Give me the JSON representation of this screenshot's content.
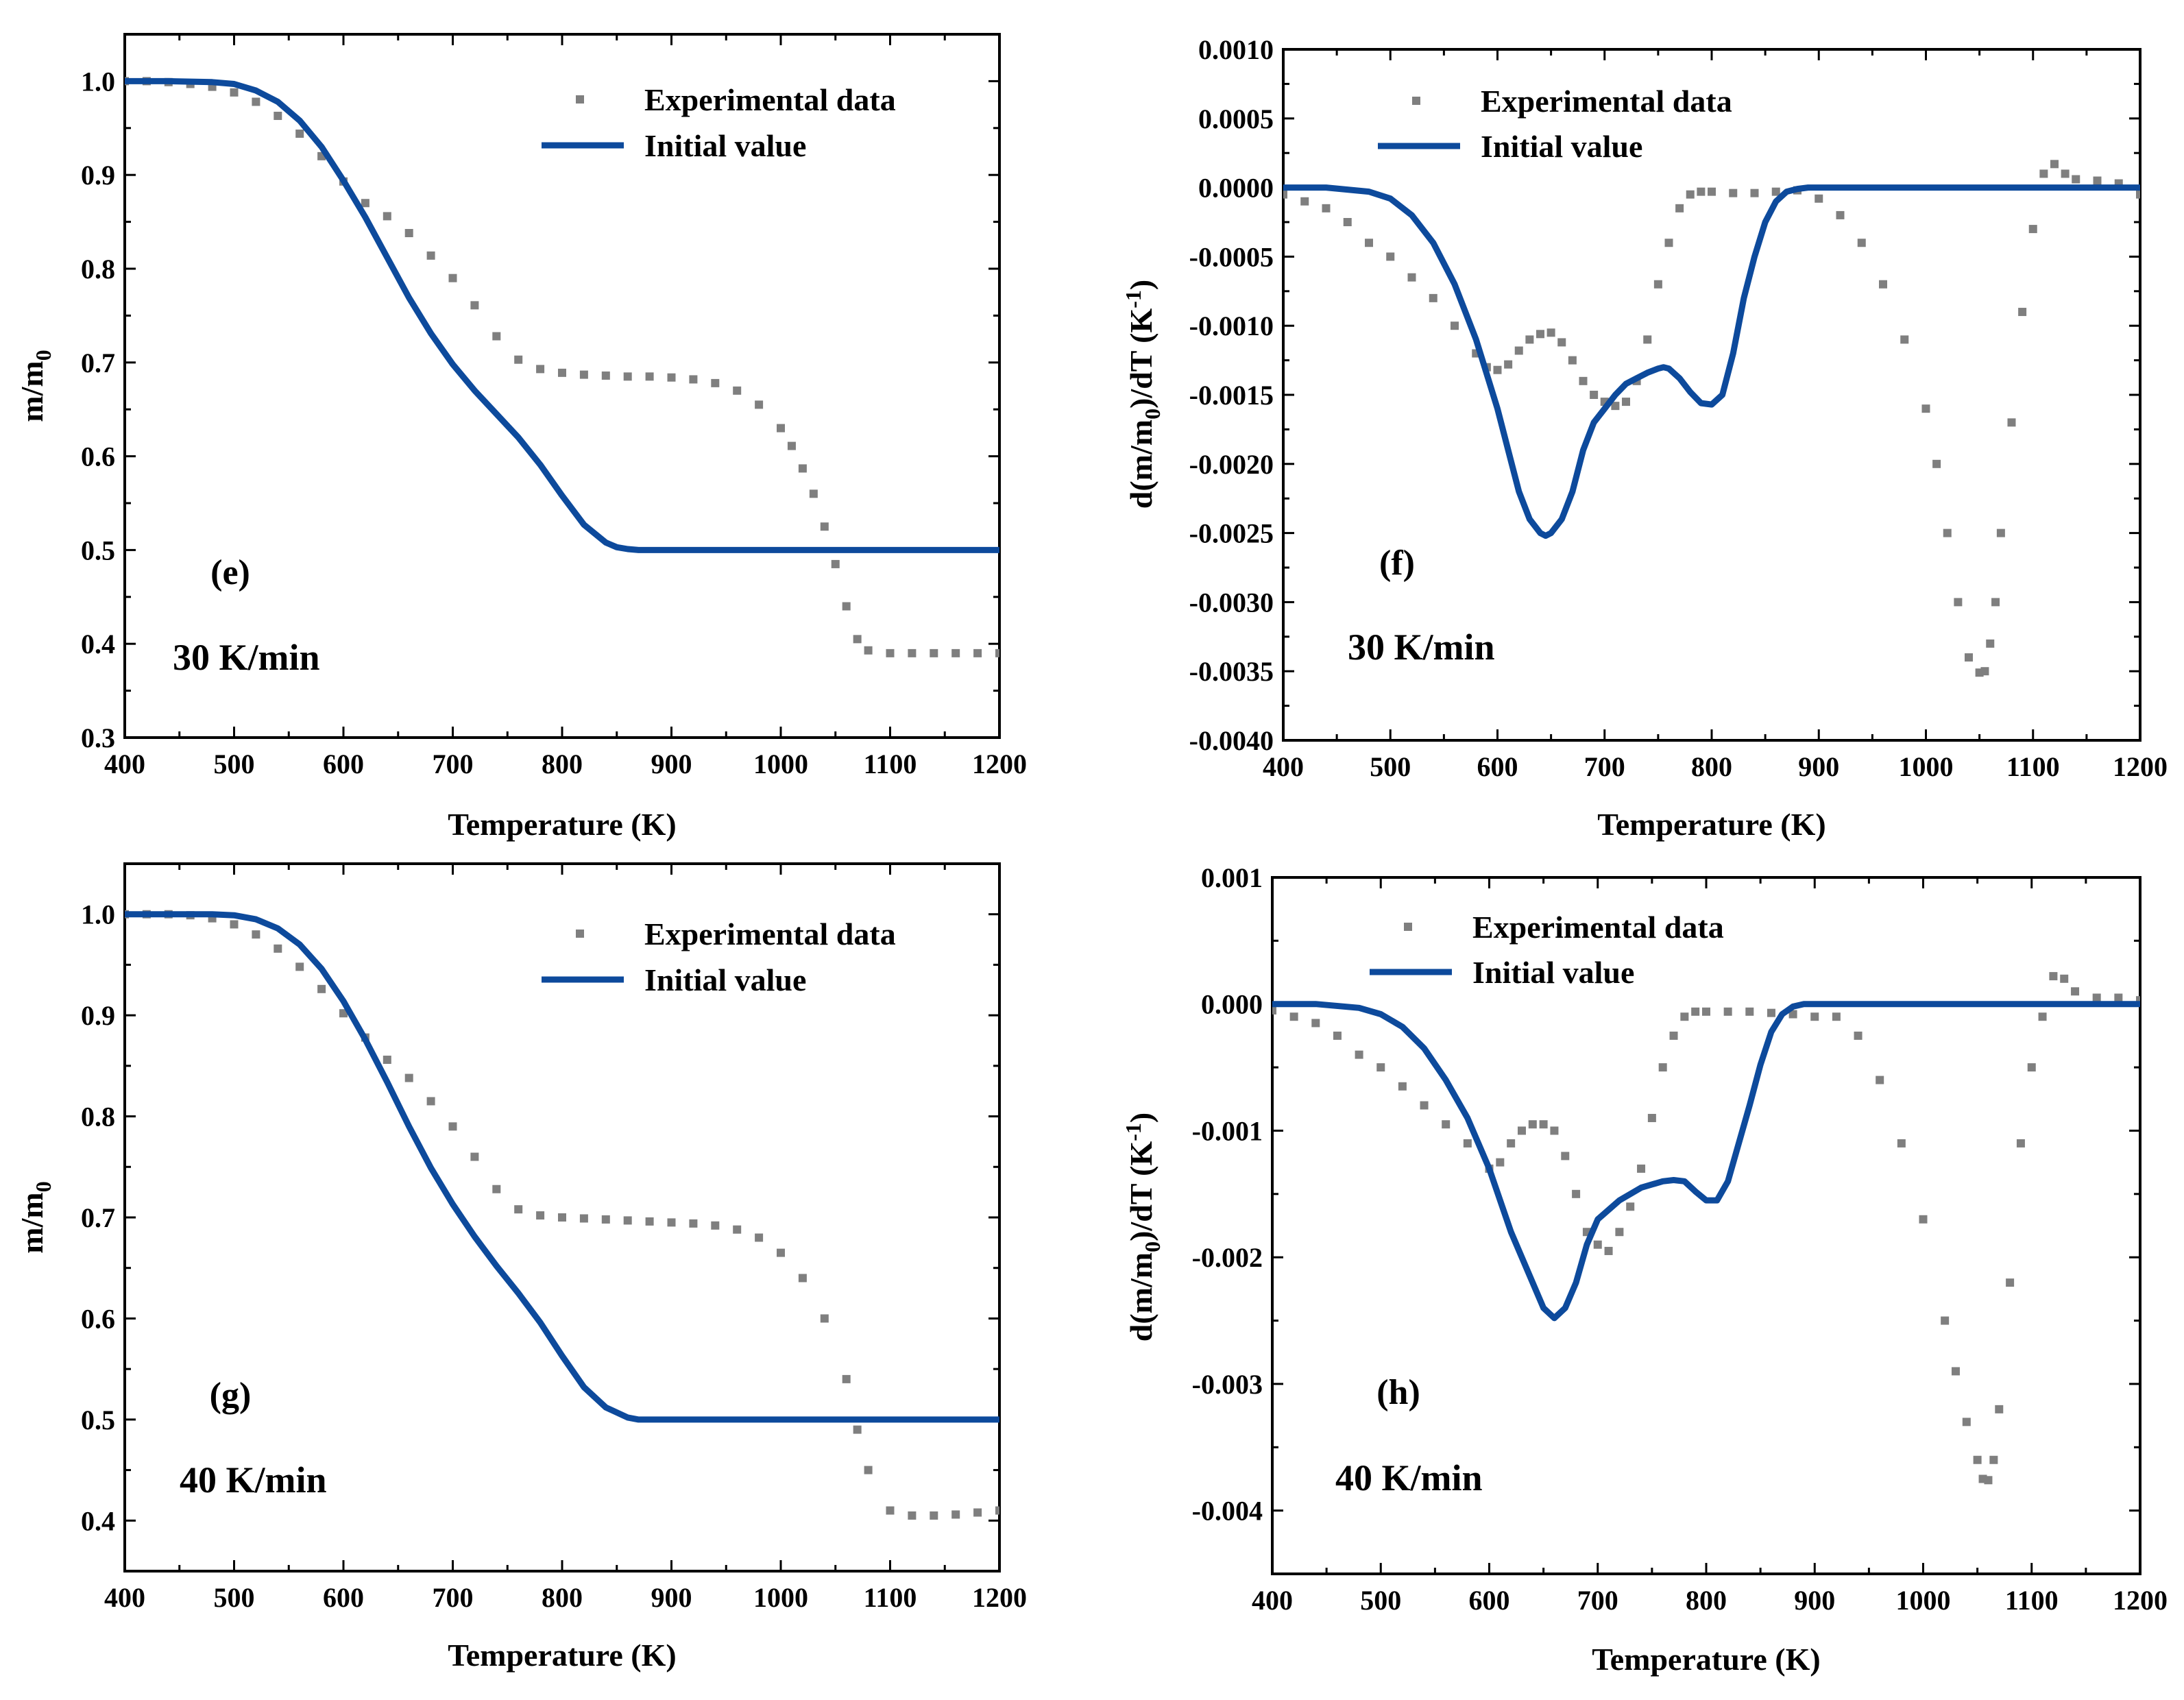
{
  "colors": {
    "experimental": "#7f7f7f",
    "initial": "#0d4a9c",
    "axis": "#000000"
  },
  "chart_data": [
    {
      "id": "e",
      "type": "line+scatter",
      "panel_label": "(e)",
      "rate_label": "30 K/min",
      "xlabel": "Temperature (K)",
      "ylabel": "m/m",
      "ylabel_sub": "0",
      "ylabel_suffix": "",
      "xlim": [
        400,
        1200
      ],
      "ylim": [
        0.3,
        1.05
      ],
      "xticks": [
        400,
        500,
        600,
        700,
        800,
        900,
        1000,
        1100,
        1200
      ],
      "xtick_labels": [
        "400",
        "500",
        "600",
        "700",
        "800",
        "900",
        "1000",
        "1100",
        "1200"
      ],
      "yticks": [
        0.3,
        0.4,
        0.5,
        0.6,
        0.7,
        0.8,
        0.9,
        1.0
      ],
      "ytick_labels": [
        "0.3",
        "0.4",
        "0.5",
        "0.6",
        "0.7",
        "0.8",
        "0.9",
        "1.0"
      ],
      "legend": {
        "position": "top-right",
        "entries": [
          "Experimental data",
          "Initial value"
        ]
      },
      "series": [
        {
          "name": "Experimental data",
          "style": "scatter",
          "x": [
            400,
            420,
            440,
            460,
            480,
            500,
            520,
            540,
            560,
            580,
            600,
            620,
            640,
            660,
            680,
            700,
            720,
            740,
            760,
            780,
            800,
            820,
            840,
            860,
            880,
            900,
            920,
            940,
            960,
            980,
            1000,
            1010,
            1020,
            1030,
            1040,
            1050,
            1060,
            1070,
            1080,
            1100,
            1120,
            1140,
            1160,
            1180,
            1200
          ],
          "y": [
            1.0,
            1.0,
            0.999,
            0.997,
            0.994,
            0.988,
            0.978,
            0.963,
            0.944,
            0.92,
            0.893,
            0.87,
            0.856,
            0.838,
            0.814,
            0.79,
            0.761,
            0.728,
            0.703,
            0.693,
            0.689,
            0.687,
            0.686,
            0.685,
            0.685,
            0.684,
            0.682,
            0.678,
            0.67,
            0.655,
            0.63,
            0.611,
            0.587,
            0.56,
            0.525,
            0.485,
            0.44,
            0.405,
            0.393,
            0.39,
            0.39,
            0.39,
            0.39,
            0.39,
            0.39
          ]
        },
        {
          "name": "Initial value",
          "style": "line",
          "x": [
            400,
            440,
            480,
            500,
            520,
            540,
            560,
            580,
            600,
            620,
            640,
            660,
            680,
            700,
            720,
            740,
            760,
            780,
            800,
            820,
            840,
            850,
            860,
            870,
            880,
            900,
            1000,
            1100,
            1200
          ],
          "y": [
            1.0,
            1.0,
            0.999,
            0.997,
            0.99,
            0.978,
            0.958,
            0.93,
            0.894,
            0.855,
            0.812,
            0.769,
            0.731,
            0.698,
            0.67,
            0.645,
            0.62,
            0.591,
            0.558,
            0.527,
            0.508,
            0.503,
            0.501,
            0.5,
            0.5,
            0.5,
            0.5,
            0.5,
            0.5
          ]
        }
      ]
    },
    {
      "id": "f",
      "type": "line+scatter",
      "panel_label": "(f)",
      "rate_label": "30 K/min",
      "xlabel": "Temperature (K)",
      "ylabel": "d(m/m",
      "ylabel_sub": "0",
      "ylabel_suffix": ")/dT (K",
      "ylabel_sup": "-1",
      "ylabel_end": ")",
      "xlim": [
        400,
        1200
      ],
      "ylim": [
        -0.004,
        0.001
      ],
      "xticks": [
        400,
        500,
        600,
        700,
        800,
        900,
        1000,
        1100,
        1200
      ],
      "xtick_labels": [
        "400",
        "500",
        "600",
        "700",
        "800",
        "900",
        "1000",
        "1100",
        "1200"
      ],
      "yticks": [
        -0.004,
        -0.0035,
        -0.003,
        -0.0025,
        -0.002,
        -0.0015,
        -0.001,
        -0.0005,
        0.0,
        0.0005,
        0.001
      ],
      "ytick_labels": [
        "-0.0040",
        "-0.0035",
        "-0.0030",
        "-0.0025",
        "-0.0020",
        "-0.0015",
        "-0.0010",
        "-0.0005",
        "0.0000",
        "0.0005",
        "0.0010"
      ],
      "legend": {
        "position": "top-center",
        "entries": [
          "Experimental data",
          "Initial value"
        ]
      },
      "series": [
        {
          "name": "Experimental data",
          "style": "scatter",
          "x": [
            400,
            420,
            440,
            460,
            480,
            500,
            520,
            540,
            560,
            580,
            590,
            600,
            610,
            620,
            630,
            640,
            650,
            660,
            670,
            680,
            690,
            700,
            710,
            720,
            730,
            740,
            750,
            760,
            770,
            780,
            790,
            800,
            820,
            840,
            860,
            880,
            900,
            920,
            940,
            960,
            980,
            1000,
            1010,
            1020,
            1030,
            1040,
            1050,
            1055,
            1060,
            1065,
            1070,
            1080,
            1090,
            1100,
            1110,
            1120,
            1130,
            1140,
            1160,
            1180,
            1200
          ],
          "y": [
            -5e-05,
            -0.0001,
            -0.00015,
            -0.00025,
            -0.0004,
            -0.0005,
            -0.00065,
            -0.0008,
            -0.001,
            -0.0012,
            -0.0013,
            -0.00132,
            -0.00128,
            -0.00118,
            -0.0011,
            -0.00106,
            -0.00105,
            -0.00112,
            -0.00125,
            -0.0014,
            -0.0015,
            -0.00155,
            -0.00158,
            -0.00155,
            -0.0014,
            -0.0011,
            -0.0007,
            -0.0004,
            -0.00015,
            -5e-05,
            -3e-05,
            -3e-05,
            -4e-05,
            -4e-05,
            -3e-05,
            -2e-05,
            -8e-05,
            -0.0002,
            -0.0004,
            -0.0007,
            -0.0011,
            -0.0016,
            -0.002,
            -0.0025,
            -0.003,
            -0.0034,
            -0.00351,
            -0.0035,
            -0.0033,
            -0.003,
            -0.0025,
            -0.0017,
            -0.0009,
            -0.0003,
            0.0001,
            0.00017,
            0.0001,
            6e-05,
            5e-05,
            3e-05,
            -5e-05
          ]
        },
        {
          "name": "Initial value",
          "style": "line",
          "x": [
            400,
            440,
            480,
            500,
            520,
            540,
            560,
            580,
            600,
            610,
            620,
            630,
            640,
            645,
            650,
            660,
            670,
            680,
            690,
            700,
            710,
            720,
            730,
            740,
            750,
            755,
            760,
            770,
            780,
            790,
            800,
            810,
            820,
            830,
            840,
            850,
            860,
            870,
            880,
            890,
            900,
            1000,
            1100,
            1200
          ],
          "y": [
            0.0,
            0.0,
            -3e-05,
            -8e-05,
            -0.0002,
            -0.0004,
            -0.0007,
            -0.0011,
            -0.0016,
            -0.0019,
            -0.0022,
            -0.0024,
            -0.0025,
            -0.00252,
            -0.0025,
            -0.0024,
            -0.0022,
            -0.0019,
            -0.0017,
            -0.0016,
            -0.0015,
            -0.00142,
            -0.00138,
            -0.00134,
            -0.00131,
            -0.0013,
            -0.00131,
            -0.00138,
            -0.00148,
            -0.00156,
            -0.00157,
            -0.0015,
            -0.0012,
            -0.0008,
            -0.0005,
            -0.00025,
            -0.0001,
            -3e-05,
            -1e-05,
            0.0,
            0.0,
            0.0,
            0.0,
            0.0
          ]
        }
      ]
    },
    {
      "id": "g",
      "type": "line+scatter",
      "panel_label": "(g)",
      "rate_label": "40 K/min",
      "xlabel": "Temperature (K)",
      "ylabel": "m/m",
      "ylabel_sub": "0",
      "ylabel_suffix": "",
      "xlim": [
        400,
        1200
      ],
      "ylim": [
        0.35,
        1.05
      ],
      "xticks": [
        400,
        500,
        600,
        700,
        800,
        900,
        1000,
        1100,
        1200
      ],
      "xtick_labels": [
        "400",
        "500",
        "600",
        "700",
        "800",
        "900",
        "1000",
        "1100",
        "1200"
      ],
      "yticks": [
        0.4,
        0.5,
        0.6,
        0.7,
        0.8,
        0.9,
        1.0
      ],
      "ytick_labels": [
        "0.4",
        "0.5",
        "0.6",
        "0.7",
        "0.8",
        "0.9",
        "1.0"
      ],
      "legend": {
        "position": "top-right",
        "entries": [
          "Experimental data",
          "Initial value"
        ]
      },
      "series": [
        {
          "name": "Experimental data",
          "style": "scatter",
          "x": [
            400,
            420,
            440,
            460,
            480,
            500,
            520,
            540,
            560,
            580,
            600,
            620,
            640,
            660,
            680,
            700,
            720,
            740,
            760,
            780,
            800,
            820,
            840,
            860,
            880,
            900,
            920,
            940,
            960,
            980,
            1000,
            1020,
            1040,
            1060,
            1070,
            1080,
            1100,
            1120,
            1140,
            1160,
            1180,
            1200
          ],
          "y": [
            1.0,
            1.0,
            1.0,
            0.999,
            0.996,
            0.99,
            0.98,
            0.966,
            0.948,
            0.926,
            0.902,
            0.878,
            0.856,
            0.838,
            0.815,
            0.79,
            0.76,
            0.728,
            0.708,
            0.702,
            0.7,
            0.699,
            0.698,
            0.697,
            0.696,
            0.695,
            0.694,
            0.692,
            0.688,
            0.68,
            0.665,
            0.64,
            0.6,
            0.54,
            0.49,
            0.45,
            0.41,
            0.405,
            0.405,
            0.406,
            0.408,
            0.41
          ]
        },
        {
          "name": "Initial value",
          "style": "line",
          "x": [
            400,
            440,
            480,
            500,
            520,
            540,
            560,
            580,
            600,
            620,
            640,
            660,
            680,
            700,
            720,
            740,
            760,
            780,
            800,
            820,
            840,
            860,
            870,
            880,
            900,
            1000,
            1100,
            1200
          ],
          "y": [
            1.0,
            1.0,
            1.0,
            0.999,
            0.995,
            0.986,
            0.97,
            0.946,
            0.914,
            0.876,
            0.834,
            0.79,
            0.749,
            0.713,
            0.681,
            0.652,
            0.625,
            0.596,
            0.563,
            0.532,
            0.512,
            0.502,
            0.5,
            0.5,
            0.5,
            0.5,
            0.5,
            0.5
          ]
        }
      ]
    },
    {
      "id": "h",
      "type": "line+scatter",
      "panel_label": "(h)",
      "rate_label": "40 K/min",
      "xlabel": "Temperature (K)",
      "ylabel": "d(m/m",
      "ylabel_sub": "0",
      "ylabel_suffix": ")/dT (K",
      "ylabel_sup": "-1",
      "ylabel_end": ")",
      "xlim": [
        400,
        1200
      ],
      "ylim": [
        -0.0045,
        0.001
      ],
      "xticks": [
        400,
        500,
        600,
        700,
        800,
        900,
        1000,
        1100,
        1200
      ],
      "xtick_labels": [
        "400",
        "500",
        "600",
        "700",
        "800",
        "900",
        "1000",
        "1100",
        "1200"
      ],
      "yticks": [
        -0.004,
        -0.003,
        -0.002,
        -0.001,
        0.0,
        0.001
      ],
      "ytick_labels": [
        "-0.004",
        "-0.003",
        "-0.002",
        "-0.001",
        "0.000",
        "0.001"
      ],
      "legend": {
        "position": "top-center",
        "entries": [
          "Experimental data",
          "Initial value"
        ]
      },
      "series": [
        {
          "name": "Experimental data",
          "style": "scatter",
          "x": [
            400,
            420,
            440,
            460,
            480,
            500,
            520,
            540,
            560,
            580,
            600,
            610,
            620,
            630,
            640,
            650,
            660,
            670,
            680,
            690,
            700,
            710,
            720,
            730,
            740,
            750,
            760,
            770,
            780,
            790,
            800,
            820,
            840,
            860,
            880,
            900,
            920,
            940,
            960,
            980,
            1000,
            1020,
            1030,
            1040,
            1050,
            1055,
            1060,
            1065,
            1070,
            1080,
            1090,
            1100,
            1110,
            1120,
            1130,
            1140,
            1160,
            1180,
            1200
          ],
          "y": [
            -5e-05,
            -0.0001,
            -0.00015,
            -0.00025,
            -0.0004,
            -0.0005,
            -0.00065,
            -0.0008,
            -0.00095,
            -0.0011,
            -0.0013,
            -0.00125,
            -0.0011,
            -0.001,
            -0.00095,
            -0.00095,
            -0.001,
            -0.0012,
            -0.0015,
            -0.0018,
            -0.0019,
            -0.00195,
            -0.0018,
            -0.0016,
            -0.0013,
            -0.0009,
            -0.0005,
            -0.00025,
            -0.0001,
            -6e-05,
            -6e-05,
            -6e-05,
            -6e-05,
            -7e-05,
            -8e-05,
            -0.0001,
            -0.0001,
            -0.00025,
            -0.0006,
            -0.0011,
            -0.0017,
            -0.0025,
            -0.0029,
            -0.0033,
            -0.0036,
            -0.00375,
            -0.00376,
            -0.0036,
            -0.0032,
            -0.0022,
            -0.0011,
            -0.0005,
            -0.0001,
            0.00022,
            0.0002,
            0.0001,
            5e-05,
            5e-05,
            3e-05
          ]
        },
        {
          "name": "Initial value",
          "style": "line",
          "x": [
            400,
            440,
            480,
            500,
            520,
            540,
            560,
            580,
            600,
            620,
            640,
            650,
            660,
            670,
            680,
            690,
            700,
            720,
            740,
            760,
            770,
            780,
            790,
            800,
            810,
            820,
            830,
            840,
            850,
            860,
            870,
            880,
            890,
            900,
            1000,
            1100,
            1200
          ],
          "y": [
            0.0,
            0.0,
            -3e-05,
            -8e-05,
            -0.00018,
            -0.00035,
            -0.0006,
            -0.0009,
            -0.0013,
            -0.0018,
            -0.0022,
            -0.0024,
            -0.00248,
            -0.0024,
            -0.0022,
            -0.0019,
            -0.0017,
            -0.00155,
            -0.00145,
            -0.0014,
            -0.00139,
            -0.0014,
            -0.00148,
            -0.00155,
            -0.00155,
            -0.0014,
            -0.0011,
            -0.0008,
            -0.00048,
            -0.00022,
            -8e-05,
            -2e-05,
            0.0,
            0.0,
            0.0,
            0.0,
            0.0
          ]
        }
      ]
    }
  ]
}
